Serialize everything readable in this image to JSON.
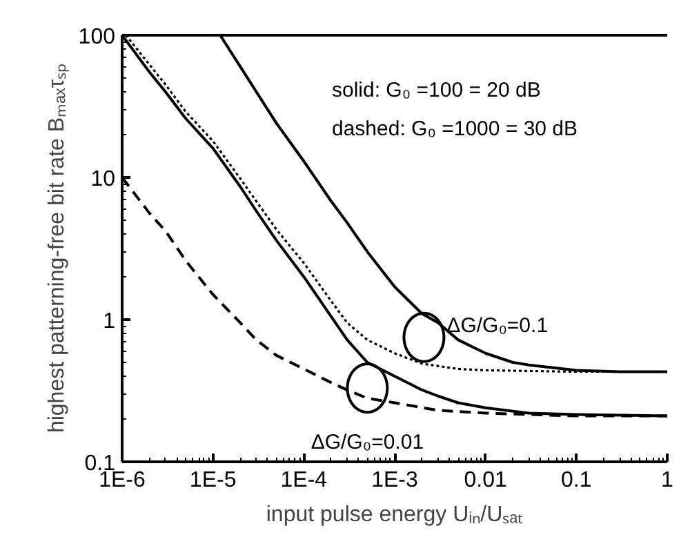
{
  "chart_data": {
    "type": "line",
    "xlabel": "input pulse energy Uᵢₙ/Uₛₐₜ",
    "ylabel": "highest patterning-free bit rate Bₘₐₓτₛₚ",
    "log": "xy",
    "grid": false,
    "marker": "none",
    "xlim": [
      1e-06,
      1
    ],
    "ylim": [
      0.1,
      100
    ],
    "xticks": [
      {
        "value": 1e-06,
        "label": "1E-6"
      },
      {
        "value": 1e-05,
        "label": "1E-5"
      },
      {
        "value": 0.0001,
        "label": "1E-4"
      },
      {
        "value": 0.001,
        "label": "1E-3"
      },
      0.01,
      0.1,
      1
    ],
    "yticks": [
      0.1,
      1,
      10,
      100
    ],
    "series": [
      {
        "color": "#000000",
        "line_style": "solid",
        "x": [
          1.2e-05,
          2e-05,
          3e-05,
          5e-05,
          0.0001,
          0.0002,
          0.0003,
          0.0005,
          0.001,
          0.002,
          0.003,
          0.005,
          0.01,
          0.02,
          0.03,
          0.1,
          0.3,
          1
        ],
        "values": [
          100,
          60,
          40,
          24,
          13,
          6.8,
          4.8,
          3.0,
          1.7,
          1.1,
          0.95,
          0.72,
          0.58,
          0.5,
          0.48,
          0.44,
          0.43,
          0.43
        ]
      },
      {
        "color": "#000000",
        "line_style": "solid",
        "x": [
          1e-06,
          2e-06,
          3e-06,
          5e-06,
          1e-05,
          2e-05,
          3e-05,
          5e-05,
          0.0001,
          0.0002,
          0.0003,
          0.0005,
          0.001,
          0.002,
          0.003,
          0.005,
          0.01,
          0.03,
          0.1,
          1
        ],
        "values": [
          100,
          55,
          40,
          26,
          16,
          8.6,
          5.8,
          3.6,
          2.0,
          1.05,
          0.72,
          0.5,
          0.4,
          0.32,
          0.29,
          0.26,
          0.24,
          0.22,
          0.215,
          0.21
        ]
      },
      {
        "color": "#000000",
        "line_style": "dotted",
        "x": [
          1.1e-06,
          2e-06,
          3e-06,
          5e-06,
          1e-05,
          2e-05,
          3e-05,
          5e-05,
          0.0001,
          0.0002,
          0.0003,
          0.0005,
          0.001,
          0.002,
          0.005,
          0.01,
          0.1,
          1
        ],
        "values": [
          100,
          62,
          45,
          29,
          18,
          9.8,
          6.8,
          4.3,
          2.5,
          1.35,
          0.95,
          0.72,
          0.58,
          0.49,
          0.45,
          0.44,
          0.43,
          0.43
        ]
      },
      {
        "color": "#000000",
        "line_style": "dashed",
        "x": [
          1e-06,
          2e-06,
          3e-06,
          5e-06,
          1e-05,
          2e-05,
          3e-05,
          5e-05,
          0.0001,
          0.0002,
          0.0003,
          0.0005,
          0.001,
          0.003,
          0.01,
          0.1,
          1
        ],
        "values": [
          10,
          5.6,
          4.2,
          2.6,
          1.5,
          0.95,
          0.72,
          0.56,
          0.45,
          0.36,
          0.32,
          0.28,
          0.26,
          0.23,
          0.22,
          0.21,
          0.21
        ]
      }
    ],
    "annotations": [
      "solid: G₀ =100 = 20 dB",
      "dashed: G₀ =1000 = 30 dB",
      {
        "text": "ΔG/G₀=0.1",
        "x": 0.0021,
        "y": 0.75
      },
      {
        "text": "ΔG/G₀=0.01",
        "x": 0.0005,
        "y": 0.33
      }
    ]
  }
}
